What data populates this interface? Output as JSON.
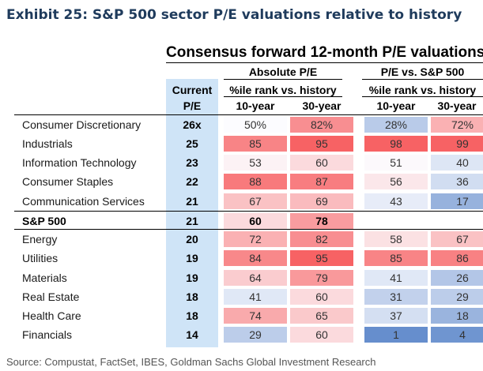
{
  "exhibit_title": "Exhibit 25: S&P 500 sector P/E valuations relative to history",
  "table_title": "Consensus forward 12-month P/E valuations",
  "headers": {
    "current_line1": "Current",
    "current_line2": "P/E",
    "absolute": "Absolute P/E",
    "relative": "P/E vs. S&P 500",
    "pct_rank_abs": "%ile rank vs. history",
    "pct_rank_rel": "%ile rank vs. history",
    "ten_year_abs": "10-year",
    "thirty_year_abs": "30-year",
    "ten_year_rel": "10-year",
    "thirty_year_rel": "30-year"
  },
  "rows": [
    {
      "name": "Consumer Discretionary",
      "current": "26x",
      "abs10": "50%",
      "abs30": "82%",
      "rel10": "28%",
      "rel30": "72%"
    },
    {
      "name": "Industrials",
      "current": "25",
      "abs10": "85",
      "abs30": "95",
      "rel10": "98",
      "rel30": "99"
    },
    {
      "name": "Information Technology",
      "current": "23",
      "abs10": "53",
      "abs30": "60",
      "rel10": "51",
      "rel30": "40"
    },
    {
      "name": "Consumer Staples",
      "current": "22",
      "abs10": "88",
      "abs30": "87",
      "rel10": "56",
      "rel30": "36"
    },
    {
      "name": "Communication Services",
      "current": "21",
      "abs10": "67",
      "abs30": "69",
      "rel10": "43",
      "rel30": "17"
    },
    {
      "name": "S&P 500",
      "current": "21",
      "abs10": "60",
      "abs30": "78",
      "rel10": "",
      "rel30": ""
    },
    {
      "name": "Energy",
      "current": "20",
      "abs10": "72",
      "abs30": "82",
      "rel10": "58",
      "rel30": "67"
    },
    {
      "name": "Utilities",
      "current": "19",
      "abs10": "84",
      "abs30": "95",
      "rel10": "85",
      "rel30": "86"
    },
    {
      "name": "Materials",
      "current": "19",
      "abs10": "64",
      "abs30": "79",
      "rel10": "41",
      "rel30": "26"
    },
    {
      "name": "Real Estate",
      "current": "18",
      "abs10": "41",
      "abs30": "60",
      "rel10": "31",
      "rel30": "29"
    },
    {
      "name": "Health Care",
      "current": "18",
      "abs10": "74",
      "abs30": "65",
      "rel10": "37",
      "rel30": "18"
    },
    {
      "name": "Financials",
      "current": "14",
      "abs10": "29",
      "abs30": "60",
      "rel10": "1",
      "rel30": "4"
    }
  ],
  "source": "Source: Compustat, FactSet, IBES, Goldman Sachs Global Investment Research"
}
